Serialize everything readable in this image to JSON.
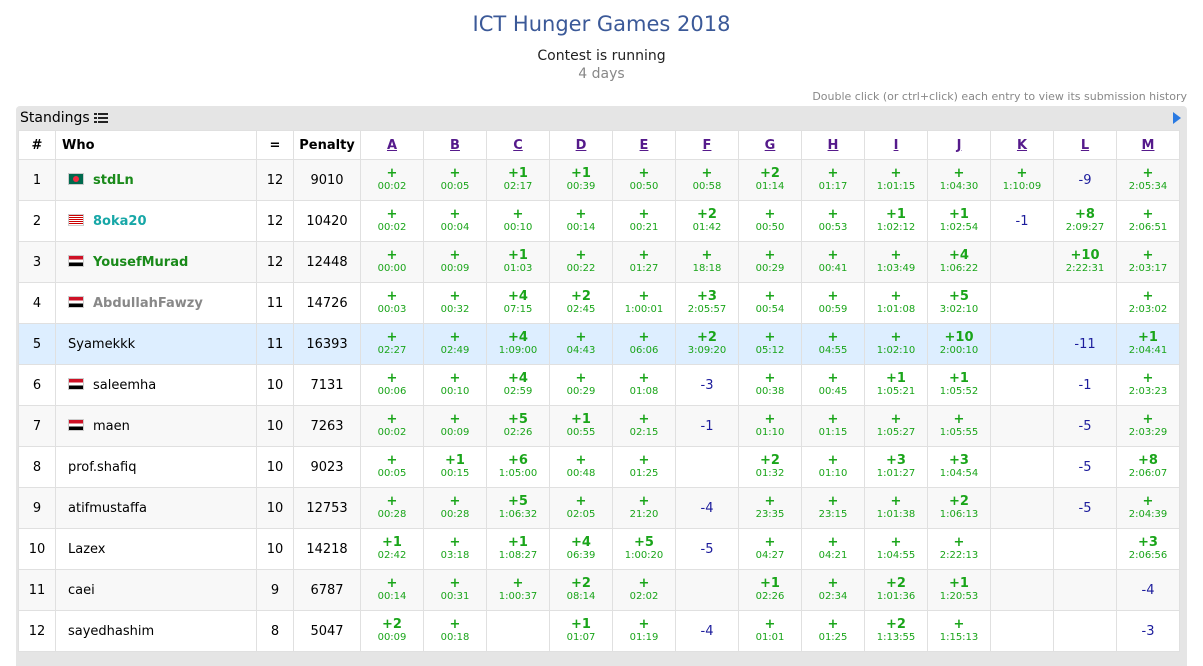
{
  "contest": {
    "title": "ICT Hunger Games 2018",
    "status": "Contest is running",
    "duration": "4 days",
    "hint": "Double click (or ctrl+click) each entry to view its submission history"
  },
  "panel": {
    "title": "Standings"
  },
  "headers": {
    "rank": "#",
    "who": "Who",
    "solved": "=",
    "penalty": "Penalty"
  },
  "problems": [
    "A",
    "B",
    "C",
    "D",
    "E",
    "F",
    "G",
    "H",
    "I",
    "J",
    "K",
    "L",
    "M"
  ],
  "colors": {
    "accepted": "#1aa51a",
    "failed": "#1c1c9c",
    "highlight": "#ddeeff",
    "title": "#3b5998"
  },
  "rows": [
    {
      "rank": "1",
      "name": "stdLn",
      "name_color": "#1a8a1a",
      "flag": "bd",
      "solved": "12",
      "penalty": "9010",
      "cells": [
        [
          "+",
          "00:02"
        ],
        [
          "+",
          "00:05"
        ],
        [
          "+1",
          "02:17"
        ],
        [
          "+1",
          "00:39"
        ],
        [
          "+",
          "00:50"
        ],
        [
          "+",
          "00:58"
        ],
        [
          "+2",
          "01:14"
        ],
        [
          "+",
          "01:17"
        ],
        [
          "+",
          "1:01:15"
        ],
        [
          "+",
          "1:04:30"
        ],
        [
          "+",
          "1:10:09"
        ],
        [
          "-9",
          ""
        ],
        [
          "+",
          "2:05:34"
        ]
      ]
    },
    {
      "rank": "2",
      "name": "8oka20",
      "name_color": "#17a7a7",
      "flag": "my",
      "solved": "12",
      "penalty": "10420",
      "cells": [
        [
          "+",
          "00:02"
        ],
        [
          "+",
          "00:04"
        ],
        [
          "+",
          "00:10"
        ],
        [
          "+",
          "00:14"
        ],
        [
          "+",
          "00:21"
        ],
        [
          "+2",
          "01:42"
        ],
        [
          "+",
          "00:50"
        ],
        [
          "+",
          "00:53"
        ],
        [
          "+1",
          "1:02:12"
        ],
        [
          "+1",
          "1:02:54"
        ],
        [
          "-1",
          ""
        ],
        [
          "+8",
          "2:09:27"
        ],
        [
          "+",
          "2:06:51"
        ]
      ]
    },
    {
      "rank": "3",
      "name": "YousefMurad",
      "name_color": "#1a8a1a",
      "flag": "eg",
      "solved": "12",
      "penalty": "12448",
      "cells": [
        [
          "+",
          "00:00"
        ],
        [
          "+",
          "00:09"
        ],
        [
          "+1",
          "01:03"
        ],
        [
          "+",
          "00:22"
        ],
        [
          "+",
          "01:27"
        ],
        [
          "+",
          "18:18"
        ],
        [
          "+",
          "00:29"
        ],
        [
          "+",
          "00:41"
        ],
        [
          "+",
          "1:03:49"
        ],
        [
          "+4",
          "1:06:22"
        ],
        [
          "",
          ""
        ],
        [
          "+10",
          "2:22:31"
        ],
        [
          "+",
          "2:03:17"
        ]
      ]
    },
    {
      "rank": "4",
      "name": "AbdullahFawzy",
      "name_color": "#888888",
      "flag": "eg",
      "solved": "11",
      "penalty": "14726",
      "cells": [
        [
          "+",
          "00:03"
        ],
        [
          "+",
          "00:32"
        ],
        [
          "+4",
          "07:15"
        ],
        [
          "+2",
          "02:45"
        ],
        [
          "+",
          "1:00:01"
        ],
        [
          "+3",
          "2:05:57"
        ],
        [
          "+",
          "00:54"
        ],
        [
          "+",
          "00:59"
        ],
        [
          "+",
          "1:01:08"
        ],
        [
          "+5",
          "3:02:10"
        ],
        [
          "",
          ""
        ],
        [
          "",
          ""
        ],
        [
          "+",
          "2:03:02"
        ]
      ]
    },
    {
      "rank": "5",
      "name": "Syamekkk",
      "name_color": "#000000",
      "flag": "",
      "solved": "11",
      "penalty": "16393",
      "highlight": true,
      "cells": [
        [
          "+",
          "02:27"
        ],
        [
          "+",
          "02:49"
        ],
        [
          "+4",
          "1:09:00"
        ],
        [
          "+",
          "04:43"
        ],
        [
          "+",
          "06:06"
        ],
        [
          "+2",
          "3:09:20"
        ],
        [
          "+",
          "05:12"
        ],
        [
          "+",
          "04:55"
        ],
        [
          "+",
          "1:02:10"
        ],
        [
          "+10",
          "2:00:10"
        ],
        [
          "",
          ""
        ],
        [
          "-11",
          ""
        ],
        [
          "+1",
          "2:04:41"
        ]
      ]
    },
    {
      "rank": "6",
      "name": "saleemha",
      "name_color": "#000000",
      "flag": "eg",
      "solved": "10",
      "penalty": "7131",
      "cells": [
        [
          "+",
          "00:06"
        ],
        [
          "+",
          "00:10"
        ],
        [
          "+4",
          "02:59"
        ],
        [
          "+",
          "00:29"
        ],
        [
          "+",
          "01:08"
        ],
        [
          "-3",
          ""
        ],
        [
          "+",
          "00:38"
        ],
        [
          "+",
          "00:45"
        ],
        [
          "+1",
          "1:05:21"
        ],
        [
          "+1",
          "1:05:52"
        ],
        [
          "",
          ""
        ],
        [
          "-1",
          ""
        ],
        [
          "+",
          "2:03:23"
        ]
      ]
    },
    {
      "rank": "7",
      "name": "maen",
      "name_color": "#000000",
      "flag": "sy",
      "solved": "10",
      "penalty": "7263",
      "cells": [
        [
          "+",
          "00:02"
        ],
        [
          "+",
          "00:09"
        ],
        [
          "+5",
          "02:26"
        ],
        [
          "+1",
          "00:55"
        ],
        [
          "+",
          "02:15"
        ],
        [
          "-1",
          ""
        ],
        [
          "+",
          "01:10"
        ],
        [
          "+",
          "01:15"
        ],
        [
          "+",
          "1:05:27"
        ],
        [
          "+",
          "1:05:55"
        ],
        [
          "",
          ""
        ],
        [
          "-5",
          ""
        ],
        [
          "+",
          "2:03:29"
        ]
      ]
    },
    {
      "rank": "8",
      "name": "prof.shafiq",
      "name_color": "#000000",
      "flag": "",
      "solved": "10",
      "penalty": "9023",
      "cells": [
        [
          "+",
          "00:05"
        ],
        [
          "+1",
          "00:15"
        ],
        [
          "+6",
          "1:05:00"
        ],
        [
          "+",
          "00:48"
        ],
        [
          "+",
          "01:25"
        ],
        [
          "",
          ""
        ],
        [
          "+2",
          "01:32"
        ],
        [
          "+",
          "01:10"
        ],
        [
          "+3",
          "1:01:27"
        ],
        [
          "+3",
          "1:04:54"
        ],
        [
          "",
          ""
        ],
        [
          "-5",
          ""
        ],
        [
          "+8",
          "2:06:07"
        ]
      ]
    },
    {
      "rank": "9",
      "name": "atifmustaffa",
      "name_color": "#000000",
      "flag": "",
      "solved": "10",
      "penalty": "12753",
      "cells": [
        [
          "+",
          "00:28"
        ],
        [
          "+",
          "00:28"
        ],
        [
          "+5",
          "1:06:32"
        ],
        [
          "+",
          "02:05"
        ],
        [
          "+",
          "21:20"
        ],
        [
          "-4",
          ""
        ],
        [
          "+",
          "23:35"
        ],
        [
          "+",
          "23:15"
        ],
        [
          "+",
          "1:01:38"
        ],
        [
          "+2",
          "1:06:13"
        ],
        [
          "",
          ""
        ],
        [
          "-5",
          ""
        ],
        [
          "+",
          "2:04:39"
        ]
      ]
    },
    {
      "rank": "10",
      "name": "Lazex",
      "name_color": "#000000",
      "flag": "",
      "solved": "10",
      "penalty": "14218",
      "cells": [
        [
          "+1",
          "02:42"
        ],
        [
          "+",
          "03:18"
        ],
        [
          "+1",
          "1:08:27"
        ],
        [
          "+4",
          "06:39"
        ],
        [
          "+5",
          "1:00:20"
        ],
        [
          "-5",
          ""
        ],
        [
          "+",
          "04:27"
        ],
        [
          "+",
          "04:21"
        ],
        [
          "+",
          "1:04:55"
        ],
        [
          "+",
          "2:22:13"
        ],
        [
          "",
          ""
        ],
        [
          "",
          ""
        ],
        [
          "+3",
          "2:06:56"
        ]
      ]
    },
    {
      "rank": "11",
      "name": "caei",
      "name_color": "#000000",
      "flag": "",
      "solved": "9",
      "penalty": "6787",
      "cells": [
        [
          "+",
          "00:14"
        ],
        [
          "+",
          "00:31"
        ],
        [
          "+",
          "1:00:37"
        ],
        [
          "+2",
          "08:14"
        ],
        [
          "+",
          "02:02"
        ],
        [
          "",
          ""
        ],
        [
          "+1",
          "02:26"
        ],
        [
          "+",
          "02:34"
        ],
        [
          "+2",
          "1:01:36"
        ],
        [
          "+1",
          "1:20:53"
        ],
        [
          "",
          ""
        ],
        [
          "",
          ""
        ],
        [
          "-4",
          ""
        ]
      ]
    },
    {
      "rank": "12",
      "name": "sayedhashim",
      "name_color": "#000000",
      "flag": "",
      "solved": "8",
      "penalty": "5047",
      "cells": [
        [
          "+2",
          "00:09"
        ],
        [
          "+",
          "00:18"
        ],
        [
          "",
          ""
        ],
        [
          "+1",
          "01:07"
        ],
        [
          "+",
          "01:19"
        ],
        [
          "-4",
          ""
        ],
        [
          "+",
          "01:01"
        ],
        [
          "+",
          "01:25"
        ],
        [
          "+2",
          "1:13:55"
        ],
        [
          "+",
          "1:15:13"
        ],
        [
          "",
          ""
        ],
        [
          "",
          ""
        ],
        [
          "-3",
          ""
        ]
      ]
    }
  ]
}
